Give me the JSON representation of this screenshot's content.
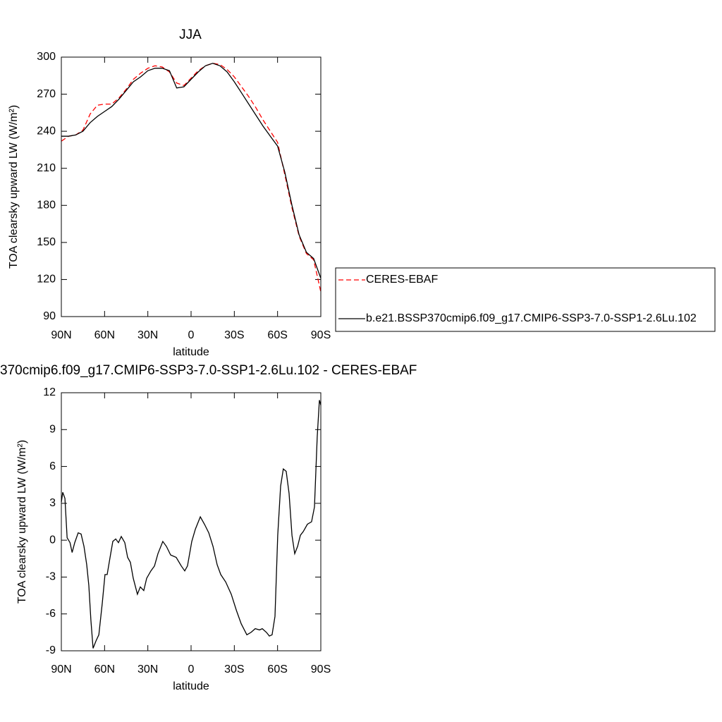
{
  "chart_data": [
    {
      "type": "line",
      "title": "JJA",
      "xlabel": "latitude",
      "ylabel": "TOA clearsky upward LW (W/m²)",
      "x": [
        90,
        85,
        80,
        75,
        70,
        65,
        60,
        55,
        50,
        45,
        40,
        35,
        30,
        25,
        20,
        15,
        10,
        5,
        0,
        -5,
        -10,
        -15,
        -20,
        -25,
        -30,
        -35,
        -40,
        -45,
        -50,
        -55,
        -60,
        -65,
        -70,
        -75,
        -80,
        -85,
        -90
      ],
      "series": [
        {
          "name": "CERES-EBAF",
          "color": "#ff0000",
          "dash": true,
          "values": [
            232,
            236,
            237,
            241,
            254,
            261,
            262,
            262,
            267,
            274,
            282,
            287,
            291,
            293,
            292,
            288,
            279,
            277,
            283,
            289,
            293,
            295,
            294,
            290,
            284,
            276,
            268,
            259,
            249,
            240,
            231,
            205,
            178,
            155,
            141,
            136,
            110
          ]
        },
        {
          "name": "b.e21.BSSP370cmip6.f09_g17.CMIP6-SSP3-7.0-SSP1-2.6Lu.102",
          "color": "#000000",
          "dash": false,
          "values": [
            236,
            236,
            237,
            240,
            247,
            252,
            256,
            260,
            266,
            273,
            280,
            284,
            289,
            291,
            291,
            289,
            275,
            276,
            282,
            288,
            293,
            295,
            293,
            288,
            280,
            271,
            262,
            253,
            244,
            236,
            228,
            207,
            180,
            156,
            142,
            137,
            121
          ]
        }
      ],
      "xlim": [
        90,
        -90
      ],
      "xticks": [
        {
          "value": 90,
          "label": "90N"
        },
        {
          "value": 60,
          "label": "60N"
        },
        {
          "value": 30,
          "label": "30N"
        },
        0,
        {
          "value": -30,
          "label": "30S"
        },
        {
          "value": -60,
          "label": "60S"
        },
        {
          "value": -90,
          "label": "90S"
        }
      ],
      "ylim": [
        90,
        300
      ],
      "yticks": [
        90,
        120,
        150,
        180,
        210,
        240,
        270,
        300
      ],
      "legend": "right"
    },
    {
      "type": "line",
      "title": "370cmip6.f09_g17.CMIP6-SSP3-7.0-SSP1-2.6Lu.102 - CERES-EBAF",
      "xlabel": "latitude",
      "ylabel": "TOA clearsky upward LW (W/m²)",
      "x": [
        90,
        89,
        87.5,
        86,
        84,
        82.5,
        80.7,
        78.3,
        76.3,
        74.3,
        72.4,
        70.9,
        69.5,
        68,
        66,
        64,
        61.6,
        59.7,
        58.2,
        56.2,
        54.3,
        52.3,
        50.4,
        48.4,
        46,
        44,
        42.1,
        40.1,
        37.2,
        35.2,
        32.8,
        30.8,
        27.9,
        25.4,
        23,
        19.6,
        17.1,
        14.2,
        10.3,
        6.8,
        4.4,
        2.5,
        -0.5,
        -3,
        -6.4,
        -9.3,
        -12.3,
        -15.2,
        -18.1,
        -20.6,
        -24,
        -27.9,
        -31.4,
        -34.8,
        -38.7,
        -41.6,
        -44.5,
        -47.5,
        -49.4,
        -52.3,
        -54.3,
        -56.2,
        -58.2,
        -60.1,
        -62.1,
        -64,
        -66,
        -68,
        -70,
        -71.9,
        -73.9,
        -75.8,
        -77.8,
        -80.7,
        -83.6,
        -85.6,
        -87.5,
        -89,
        -90
      ],
      "values": [
        3.1,
        3.9,
        3.4,
        0.2,
        -0.2,
        -1.0,
        -0.2,
        0.6,
        0.5,
        -0.5,
        -2.0,
        -3.7,
        -6.5,
        -8.8,
        -8.2,
        -7.7,
        -5.1,
        -2.8,
        -2.8,
        -1.4,
        -0.1,
        0.1,
        -0.2,
        0.3,
        -0.2,
        -1.4,
        -1.8,
        -3.1,
        -4.4,
        -3.8,
        -4.1,
        -3.1,
        -2.5,
        -2.1,
        -1.1,
        -0.1,
        -0.5,
        -1.2,
        -1.4,
        -2.1,
        -2.5,
        -2.1,
        -0.1,
        0.9,
        1.9,
        1.3,
        0.6,
        -0.5,
        -2.0,
        -2.8,
        -3.4,
        -4.4,
        -5.7,
        -6.8,
        -7.7,
        -7.5,
        -7.2,
        -7.3,
        -7.2,
        -7.5,
        -7.8,
        -7.7,
        -6.2,
        0.4,
        4.4,
        5.8,
        5.6,
        3.8,
        0.4,
        -1.1,
        -0.5,
        0.4,
        0.7,
        1.3,
        1.5,
        2.7,
        8.4,
        11.4,
        11.0
      ],
      "color": "#000000",
      "xlim": [
        90,
        -90
      ],
      "xticks": [
        {
          "value": 90,
          "label": "90N"
        },
        {
          "value": 60,
          "label": "60N"
        },
        {
          "value": 30,
          "label": "30N"
        },
        0,
        {
          "value": -30,
          "label": "30S"
        },
        {
          "value": -60,
          "label": "60S"
        },
        {
          "value": -90,
          "label": "90S"
        }
      ],
      "ylim": [
        -9,
        12
      ],
      "yticks": [
        -9,
        -6,
        -3,
        0,
        3,
        6,
        9,
        12
      ]
    }
  ]
}
